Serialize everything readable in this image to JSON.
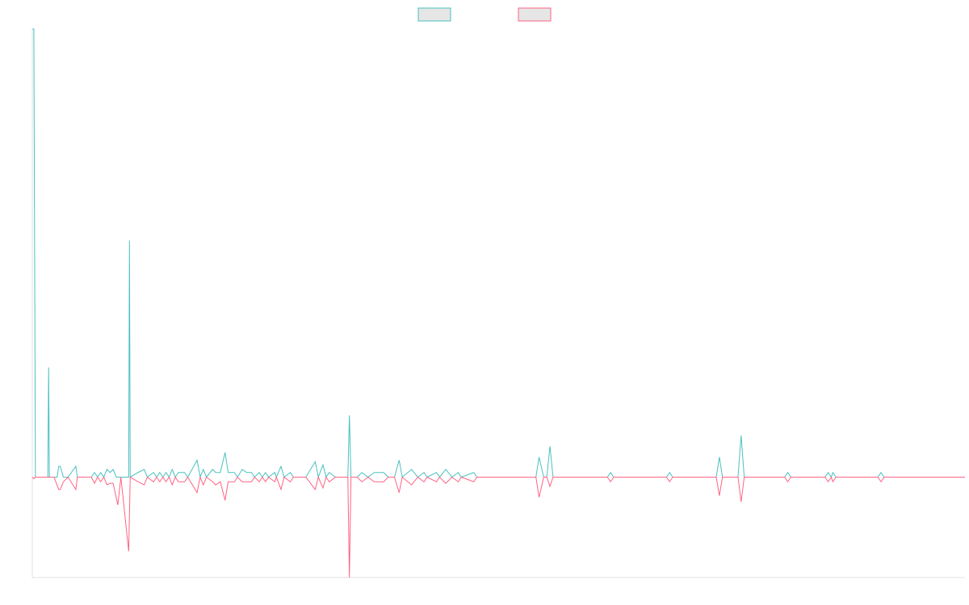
{
  "chart_data": {
    "type": "line",
    "title": "",
    "xlabel": "",
    "ylabel": "",
    "legend": {
      "placement": "top-center",
      "entries": [
        {
          "label": "",
          "color": "#4bc0c0"
        },
        {
          "label": "",
          "color": "#ff6384"
        }
      ]
    },
    "grid": false,
    "xlim": [
      0,
      600
    ],
    "ylim": [
      -65,
      290
    ],
    "baseline": 0,
    "series": [
      {
        "name": "",
        "color": "#4bc0c0",
        "points": [
          [
            0,
            290
          ],
          [
            1,
            290
          ],
          [
            2,
            0
          ],
          [
            10,
            0
          ],
          [
            10.5,
            71
          ],
          [
            11,
            0
          ],
          [
            16,
            0
          ],
          [
            17,
            7
          ],
          [
            18,
            7
          ],
          [
            20,
            0
          ],
          [
            23,
            0
          ],
          [
            28,
            7
          ],
          [
            29,
            0
          ],
          [
            38,
            0
          ],
          [
            40,
            3
          ],
          [
            42,
            0
          ],
          [
            44,
            3
          ],
          [
            46,
            0
          ],
          [
            48,
            5
          ],
          [
            50,
            3
          ],
          [
            52,
            5
          ],
          [
            54,
            0
          ],
          [
            62,
            0
          ],
          [
            62.5,
            153
          ],
          [
            63,
            0
          ],
          [
            68,
            3
          ],
          [
            72,
            5
          ],
          [
            74,
            0
          ],
          [
            78,
            3
          ],
          [
            80,
            0
          ],
          [
            82,
            3
          ],
          [
            84,
            0
          ],
          [
            86,
            3
          ],
          [
            88,
            0
          ],
          [
            90,
            5
          ],
          [
            92,
            0
          ],
          [
            94,
            3
          ],
          [
            98,
            3
          ],
          [
            100,
            0
          ],
          [
            106,
            11
          ],
          [
            108,
            0
          ],
          [
            110,
            5
          ],
          [
            112,
            0
          ],
          [
            116,
            5
          ],
          [
            118,
            3
          ],
          [
            121,
            3
          ],
          [
            124,
            16
          ],
          [
            126,
            3
          ],
          [
            130,
            3
          ],
          [
            132,
            0
          ],
          [
            135,
            5
          ],
          [
            138,
            3
          ],
          [
            141,
            3
          ],
          [
            143,
            0
          ],
          [
            146,
            3
          ],
          [
            148,
            0
          ],
          [
            150,
            3
          ],
          [
            152,
            0
          ],
          [
            156,
            3
          ],
          [
            157,
            0
          ],
          [
            160,
            7
          ],
          [
            162,
            0
          ],
          [
            166,
            3
          ],
          [
            168,
            0
          ],
          [
            176,
            0
          ],
          [
            182,
            10
          ],
          [
            184,
            0
          ],
          [
            187,
            8
          ],
          [
            189,
            0
          ],
          [
            191,
            3
          ],
          [
            195,
            0
          ],
          [
            203,
            0
          ],
          [
            204,
            40
          ],
          [
            205,
            0
          ],
          [
            209,
            0
          ],
          [
            212,
            3
          ],
          [
            216,
            0
          ],
          [
            220,
            3
          ],
          [
            226,
            3
          ],
          [
            229,
            0
          ],
          [
            233,
            0
          ],
          [
            236,
            11
          ],
          [
            238,
            0
          ],
          [
            244,
            5
          ],
          [
            248,
            0
          ],
          [
            252,
            3
          ],
          [
            254,
            0
          ],
          [
            260,
            3
          ],
          [
            262,
            0
          ],
          [
            266,
            5
          ],
          [
            270,
            0
          ],
          [
            274,
            3
          ],
          [
            276,
            0
          ],
          [
            284,
            3
          ],
          [
            286,
            0
          ],
          [
            324,
            0
          ],
          [
            326,
            13
          ],
          [
            329,
            0
          ],
          [
            331,
            0
          ],
          [
            333,
            20
          ],
          [
            335,
            0
          ],
          [
            370,
            0
          ],
          [
            372,
            3
          ],
          [
            374,
            0
          ],
          [
            408,
            0
          ],
          [
            410,
            3
          ],
          [
            412,
            0
          ],
          [
            440,
            0
          ],
          [
            442,
            13
          ],
          [
            444,
            0
          ],
          [
            454,
            0
          ],
          [
            456,
            27
          ],
          [
            458,
            0
          ],
          [
            484,
            0
          ],
          [
            486,
            3
          ],
          [
            488,
            0
          ],
          [
            510,
            0
          ],
          [
            512,
            3
          ],
          [
            514,
            0
          ],
          [
            515,
            3
          ],
          [
            517,
            0
          ],
          [
            544,
            0
          ],
          [
            546,
            3
          ],
          [
            548,
            0
          ],
          [
            600,
            0
          ]
        ]
      },
      {
        "name": "",
        "color": "#ff6384",
        "points": [
          [
            0,
            0
          ],
          [
            1,
            -1
          ],
          [
            2,
            0
          ],
          [
            10,
            0
          ],
          [
            14,
            0
          ],
          [
            17,
            -8
          ],
          [
            18,
            -8
          ],
          [
            20,
            -3
          ],
          [
            23,
            0
          ],
          [
            28,
            -8
          ],
          [
            29,
            0
          ],
          [
            38,
            0
          ],
          [
            40,
            -4
          ],
          [
            42,
            0
          ],
          [
            44,
            -3
          ],
          [
            46,
            0
          ],
          [
            48,
            -5
          ],
          [
            50,
            -4
          ],
          [
            52,
            -4
          ],
          [
            55,
            -18
          ],
          [
            57,
            0
          ],
          [
            62,
            -48
          ],
          [
            63,
            0
          ],
          [
            68,
            -3
          ],
          [
            72,
            -5
          ],
          [
            74,
            0
          ],
          [
            78,
            -3
          ],
          [
            80,
            0
          ],
          [
            82,
            -3
          ],
          [
            84,
            0
          ],
          [
            86,
            -3
          ],
          [
            88,
            0
          ],
          [
            90,
            -5
          ],
          [
            92,
            0
          ],
          [
            94,
            -3
          ],
          [
            98,
            -3
          ],
          [
            100,
            0
          ],
          [
            106,
            -10
          ],
          [
            108,
            0
          ],
          [
            110,
            -5
          ],
          [
            112,
            0
          ],
          [
            116,
            -3
          ],
          [
            118,
            -5
          ],
          [
            121,
            -3
          ],
          [
            124,
            -15
          ],
          [
            126,
            -3
          ],
          [
            130,
            -3
          ],
          [
            132,
            0
          ],
          [
            135,
            -3
          ],
          [
            138,
            -3
          ],
          [
            141,
            -3
          ],
          [
            143,
            0
          ],
          [
            146,
            -3
          ],
          [
            148,
            0
          ],
          [
            150,
            -3
          ],
          [
            152,
            0
          ],
          [
            156,
            -3
          ],
          [
            157,
            0
          ],
          [
            160,
            -8
          ],
          [
            162,
            0
          ],
          [
            166,
            -3
          ],
          [
            168,
            0
          ],
          [
            176,
            0
          ],
          [
            182,
            -8
          ],
          [
            184,
            0
          ],
          [
            187,
            -7
          ],
          [
            189,
            0
          ],
          [
            191,
            -3
          ],
          [
            195,
            0
          ],
          [
            203,
            0
          ],
          [
            204,
            -65
          ],
          [
            205,
            0
          ],
          [
            209,
            0
          ],
          [
            212,
            -3
          ],
          [
            216,
            0
          ],
          [
            220,
            -3
          ],
          [
            226,
            -3
          ],
          [
            229,
            0
          ],
          [
            233,
            0
          ],
          [
            236,
            -10
          ],
          [
            238,
            0
          ],
          [
            244,
            -5
          ],
          [
            248,
            0
          ],
          [
            252,
            -3
          ],
          [
            254,
            0
          ],
          [
            260,
            -3
          ],
          [
            262,
            0
          ],
          [
            266,
            -4
          ],
          [
            270,
            0
          ],
          [
            274,
            -3
          ],
          [
            276,
            0
          ],
          [
            284,
            -3
          ],
          [
            286,
            0
          ],
          [
            324,
            0
          ],
          [
            326,
            -13
          ],
          [
            329,
            0
          ],
          [
            331,
            0
          ],
          [
            333,
            -6
          ],
          [
            335,
            0
          ],
          [
            370,
            0
          ],
          [
            372,
            -3
          ],
          [
            374,
            0
          ],
          [
            408,
            0
          ],
          [
            410,
            -3
          ],
          [
            412,
            0
          ],
          [
            440,
            0
          ],
          [
            442,
            -12
          ],
          [
            444,
            0
          ],
          [
            454,
            0
          ],
          [
            456,
            -16
          ],
          [
            458,
            0
          ],
          [
            484,
            0
          ],
          [
            486,
            -3
          ],
          [
            488,
            0
          ],
          [
            510,
            0
          ],
          [
            512,
            -3
          ],
          [
            514,
            0
          ],
          [
            515,
            -3
          ],
          [
            517,
            0
          ],
          [
            544,
            0
          ],
          [
            546,
            -3
          ],
          [
            548,
            0
          ],
          [
            600,
            0
          ]
        ]
      }
    ]
  }
}
